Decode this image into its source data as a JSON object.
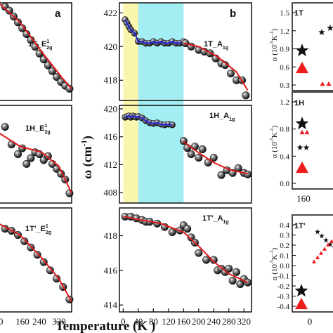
{
  "figure": {
    "xlabel": "Temperature (K )",
    "ylabel_mid": "ω (cm",
    "ylabel_mid_sup": "-1",
    "ylabel_mid_end": ")",
    "alpha_label": "α (10",
    "alpha_sup": "-5",
    "alpha_unit": "K",
    "alpha_sup2": "-1",
    "alpha_end": ")"
  },
  "colors": {
    "marker": "#1b1b1b",
    "fit_red": "#e0191b",
    "fit_blue": "#2a2acc",
    "band_yellow": "#fbf6ad",
    "band_cyan": "#a3eef2",
    "triangle_red": "#ee1c1c"
  },
  "chart_data": [
    {
      "id": "left-column",
      "type": "scatter",
      "panel_letter": "a",
      "x_ticks": [
        "160",
        "240",
        "320"
      ],
      "x_tick_prefix_visible": "0",
      "panels": [
        {
          "title": "1T_E",
          "title_sup": "1",
          "title_sub": "2g",
          "x": [
            30,
            50,
            70,
            90,
            110,
            130,
            150,
            170,
            190,
            210,
            230,
            250,
            270,
            290,
            310,
            330
          ],
          "y": [
            0.96,
            0.92,
            0.86,
            0.8,
            0.74,
            0.68,
            0.62,
            0.55,
            0.48,
            0.42,
            0.36,
            0.3,
            0.24,
            0.19,
            0.15,
            0.12
          ],
          "fit": [
            [
              0,
              1.0
            ],
            [
              100,
              0.8
            ],
            [
              200,
              0.5
            ],
            [
              300,
              0.22
            ],
            [
              340,
              0.12
            ]
          ]
        },
        {
          "title": "1H_E",
          "title_sup": "1",
          "title_sub": "2g",
          "x": [
            30,
            60,
            90,
            110,
            130,
            150,
            170,
            190,
            210,
            230,
            250,
            270,
            290,
            310,
            330
          ],
          "y": [
            0.78,
            0.6,
            0.5,
            0.56,
            0.4,
            0.46,
            0.52,
            0.5,
            0.44,
            0.48,
            0.4,
            0.35,
            0.3,
            0.24,
            0.1
          ],
          "fit": [
            [
              0,
              0.72
            ],
            [
              100,
              0.58
            ],
            [
              200,
              0.52
            ],
            [
              280,
              0.38
            ],
            [
              340,
              0.1
            ]
          ]
        },
        {
          "title": "1T'_E",
          "title_sup": "1",
          "title_sub": "2g",
          "x": [
            30,
            60,
            90,
            120,
            150,
            180,
            210,
            240,
            270,
            300,
            330
          ],
          "y": [
            0.8,
            0.78,
            0.74,
            0.68,
            0.62,
            0.55,
            0.48,
            0.4,
            0.32,
            0.24,
            0.12
          ],
          "fit": [
            [
              0,
              0.85
            ],
            [
              100,
              0.74
            ],
            [
              200,
              0.52
            ],
            [
              280,
              0.32
            ],
            [
              340,
              0.1
            ]
          ]
        }
      ]
    },
    {
      "id": "middle-column",
      "type": "scatter",
      "panel_letter": "b",
      "xlim": [
        -10,
        340
      ],
      "x_ticks": [
        0,
        40,
        80,
        120,
        160,
        200,
        240,
        280,
        320
      ],
      "bands": [
        {
          "from": 0,
          "to": 40,
          "color": "yellow"
        },
        {
          "from": 40,
          "to": 160,
          "color": "cyan"
        }
      ],
      "panels": [
        {
          "title": "1T_A",
          "title_sub": "1g",
          "ylim": [
            416.8,
            422.6
          ],
          "y_ticks": [
            418,
            420,
            422
          ],
          "low_T_blue": {
            "x": [
              5,
              10,
              15,
              20,
              30,
              40,
              50,
              60,
              70,
              80,
              90,
              100,
              110,
              120,
              130,
              140,
              150,
              160
            ],
            "y": [
              421.6,
              421.4,
              421.2,
              421.0,
              420.8,
              420.3,
              420.3,
              420.2,
              420.2,
              420.3,
              420.2,
              420.3,
              420.2,
              420.2,
              420.3,
              420.2,
              420.2,
              420.3
            ]
          },
          "x": [
            165,
            180,
            200,
            215,
            230,
            245,
            260,
            270,
            285,
            300,
            315,
            325
          ],
          "y": [
            420.2,
            420.0,
            419.8,
            419.7,
            419.6,
            419.3,
            419.0,
            418.9,
            418.4,
            418.0,
            418.0,
            417.1
          ],
          "fit": [
            [
              160,
              420.2
            ],
            [
              200,
              420.0
            ],
            [
              250,
              419.4
            ],
            [
              300,
              418.5
            ],
            [
              330,
              417.4
            ]
          ]
        },
        {
          "title": "1H_A",
          "title_sub": "1g",
          "ylim": [
            406.5,
            420.5
          ],
          "y_ticks": [
            408,
            412,
            416,
            420
          ],
          "low_T_blue": {
            "x": [
              5,
              10,
              15,
              20,
              25,
              30,
              35,
              40,
              50,
              60,
              70,
              80,
              90,
              100,
              110,
              120,
              130
            ],
            "y": [
              418.8,
              418.9,
              419.0,
              418.8,
              419.0,
              418.9,
              418.8,
              418.9,
              418.7,
              418.3,
              418.0,
              417.9,
              418.0,
              417.8,
              417.7,
              417.8,
              417.7
            ]
          },
          "x": [
            160,
            170,
            180,
            190,
            200,
            210,
            225,
            240,
            260,
            275,
            290,
            305,
            320,
            330
          ],
          "y": [
            415.4,
            414.4,
            413.5,
            414.6,
            413.0,
            414.2,
            412.3,
            413.0,
            410.5,
            411.2,
            410.8,
            411.5,
            410.8,
            410.6
          ],
          "fit": [
            [
              160,
              415.3
            ],
            [
              200,
              413.7
            ],
            [
              240,
              412.3
            ],
            [
              280,
              411.3
            ],
            [
              330,
              410.7
            ]
          ]
        },
        {
          "title": "1T'_A",
          "title_sub": "1g",
          "ylim": [
            413.6,
            419.6
          ],
          "y_ticks": [
            414,
            416,
            418
          ],
          "x": [
            5,
            20,
            35,
            50,
            60,
            70,
            90,
            110,
            130,
            150,
            160,
            170,
            180,
            190,
            200,
            220,
            240,
            250,
            260,
            270,
            280,
            290,
            300,
            310,
            320,
            330
          ],
          "y": [
            419.1,
            419.1,
            419.0,
            418.9,
            418.8,
            418.8,
            418.7,
            418.5,
            418.2,
            418.3,
            418.6,
            418.4,
            417.9,
            417.6,
            417.0,
            416.6,
            416.6,
            416.0,
            416.1,
            415.9,
            416.1,
            415.4,
            415.9,
            415.2,
            415.5,
            415.3
          ],
          "fit": [
            [
              0,
              419.1
            ],
            [
              100,
              418.7
            ],
            [
              160,
              418.2
            ],
            [
              200,
              417.4
            ],
            [
              240,
              416.5
            ],
            [
              280,
              415.8
            ],
            [
              330,
              415.3
            ]
          ]
        }
      ]
    },
    {
      "id": "right-column",
      "type": "scatter",
      "x_ticks": [
        "160",
        "0"
      ],
      "panels": [
        {
          "title": "1T",
          "y_ticks": [
            "1.5",
            "1.2",
            "0.9",
            "0.6",
            "0.3"
          ]
        },
        {
          "title": "1H",
          "y_ticks": [
            "1.2",
            "0.8",
            "0.4",
            "0.0"
          ]
        },
        {
          "title": "1T'",
          "y_ticks": [
            "0.4",
            "0.3",
            "0.2",
            "0.1",
            "0.0",
            "-0.1",
            "-0.2",
            "-0.3",
            "-0.4"
          ]
        }
      ]
    }
  ]
}
